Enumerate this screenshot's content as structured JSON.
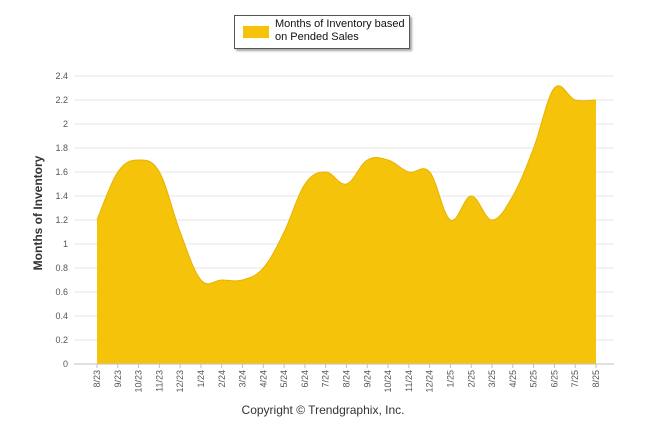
{
  "chart_data": {
    "type": "area",
    "ylabel": "Months of Inventory",
    "xlabel": "",
    "ylim": [
      0,
      2.4
    ],
    "yticks": [
      "0",
      "0.2",
      "0.4",
      "0.6",
      "0.8",
      "1",
      "1.2",
      "1.4",
      "1.6",
      "1.8",
      "2",
      "2.2",
      "2.4"
    ],
    "grid": true,
    "legend_position": "top-center",
    "categories": [
      "8/23",
      "9/23",
      "10/23",
      "11/23",
      "12/23",
      "1/24",
      "2/24",
      "3/24",
      "4/24",
      "5/24",
      "6/24",
      "7/24",
      "8/24",
      "9/24",
      "10/24",
      "11/24",
      "12/24",
      "1/25",
      "2/25",
      "3/25",
      "4/25",
      "5/25",
      "6/25",
      "7/25",
      "8/25"
    ],
    "series": [
      {
        "name": "Months of Inventory based on Pended Sales",
        "color": "#F5C30A",
        "values": [
          1.2,
          1.6,
          1.7,
          1.6,
          1.1,
          0.7,
          0.7,
          0.7,
          0.8,
          1.1,
          1.5,
          1.6,
          1.5,
          1.7,
          1.7,
          1.6,
          1.6,
          1.2,
          1.4,
          1.2,
          1.4,
          1.8,
          2.3,
          2.2,
          2.2
        ]
      }
    ]
  },
  "legend": {
    "text": "Months of Inventory based on Pended Sales"
  },
  "footer": {
    "copyright": "Copyright © Trendgraphix, Inc."
  }
}
